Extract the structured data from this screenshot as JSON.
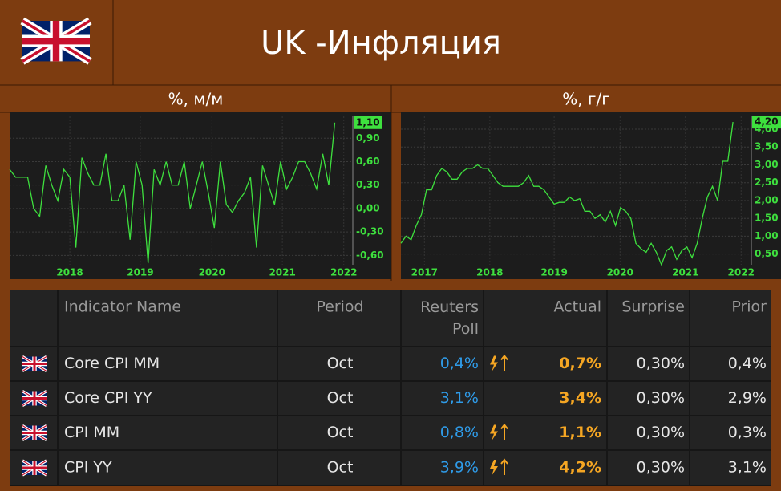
{
  "header": {
    "title": "UK -Инфляция"
  },
  "chart_data": [
    {
      "type": "line",
      "title": "%, м/м",
      "color": "#3ee03e",
      "grid": true,
      "values": [
        0.5,
        0.4,
        0.4,
        0.4,
        0.0,
        -0.1,
        0.55,
        0.3,
        0.1,
        0.5,
        0.4,
        -0.5,
        0.65,
        0.45,
        0.3,
        0.3,
        0.7,
        0.1,
        0.1,
        0.3,
        -0.4,
        0.6,
        0.3,
        -0.7,
        0.5,
        0.3,
        0.6,
        0.3,
        0.3,
        0.6,
        0.0,
        0.3,
        0.6,
        0.2,
        -0.25,
        0.6,
        0.05,
        -0.05,
        0.1,
        0.2,
        0.4,
        -0.5,
        0.55,
        0.3,
        0.05,
        0.6,
        0.25,
        0.4,
        0.6,
        0.6,
        0.45,
        0.25,
        0.7,
        0.3,
        1.1
      ],
      "xlim": [
        0,
        57
      ],
      "xticks": [
        {
          "value": 10,
          "label": "2018"
        },
        {
          "value": 21.7,
          "label": "2019"
        },
        {
          "value": 33.6,
          "label": "2020"
        },
        {
          "value": 45.3,
          "label": "2021"
        },
        {
          "value": 55.5,
          "label": "2022"
        }
      ],
      "ylim": [
        -0.72,
        1.18
      ],
      "yticks": [
        {
          "value": -0.6,
          "label": "-0,60"
        },
        {
          "value": -0.3,
          "label": "-0,30"
        },
        {
          "value": 0,
          "label": "0,00"
        },
        {
          "value": 0.3,
          "label": "0,30"
        },
        {
          "value": 0.6,
          "label": "0,60"
        },
        {
          "value": 0.9,
          "label": "0,90"
        }
      ],
      "current_value": {
        "value": 1.1,
        "label": "1,10"
      }
    },
    {
      "type": "line",
      "title": "%, г/г",
      "color": "#3ee03e",
      "grid": true,
      "values": [
        0.8,
        1.0,
        0.9,
        1.3,
        1.6,
        2.3,
        2.3,
        2.7,
        2.9,
        2.8,
        2.6,
        2.6,
        2.8,
        2.9,
        2.9,
        3.0,
        2.9,
        2.9,
        2.7,
        2.5,
        2.4,
        2.4,
        2.4,
        2.4,
        2.5,
        2.7,
        2.4,
        2.4,
        2.3,
        2.1,
        1.9,
        1.95,
        1.95,
        2.1,
        2.0,
        2.05,
        1.7,
        1.7,
        1.5,
        1.6,
        1.4,
        1.7,
        1.3,
        1.8,
        1.7,
        1.5,
        0.8,
        0.65,
        0.55,
        0.8,
        0.55,
        0.2,
        0.6,
        0.7,
        0.35,
        0.6,
        0.7,
        0.4,
        0.8,
        1.5,
        2.1,
        2.4,
        2.0,
        3.1,
        3.1,
        4.2
      ],
      "xlim": [
        0,
        68.6
      ],
      "xticks": [
        {
          "value": 4.6,
          "label": "2017"
        },
        {
          "value": 17.4,
          "label": "2018"
        },
        {
          "value": 30,
          "label": "2019"
        },
        {
          "value": 42.9,
          "label": "2020"
        },
        {
          "value": 55.7,
          "label": "2021"
        },
        {
          "value": 66.6,
          "label": "2022"
        }
      ],
      "ylim": [
        0.2,
        4.36
      ],
      "yticks": [
        {
          "value": 0.5,
          "label": "0,50"
        },
        {
          "value": 1,
          "label": "1,00"
        },
        {
          "value": 1.5,
          "label": "1,50"
        },
        {
          "value": 2,
          "label": "2,00"
        },
        {
          "value": 2.5,
          "label": "2,50"
        },
        {
          "value": 3,
          "label": "3,00"
        },
        {
          "value": 3.5,
          "label": "3,50"
        },
        {
          "value": 4,
          "label": "4,00"
        }
      ],
      "current_value": {
        "value": 4.2,
        "label": "4,20"
      }
    }
  ],
  "table": {
    "columns": {
      "name": "Indicator Name",
      "period": "Period",
      "poll": "Reuters Poll",
      "actual": "Actual",
      "surprise": "Surprise",
      "prior": "Prior"
    },
    "rows": [
      {
        "name": "Core CPI MM",
        "period": "Oct",
        "poll": "0,4%",
        "actual": "0,7%",
        "surprise": "0,30%",
        "prior": "0,4%",
        "beat": true
      },
      {
        "name": "Core CPI YY",
        "period": "Oct",
        "poll": "3,1%",
        "actual": "3,4%",
        "surprise": "0,30%",
        "prior": "2,9%",
        "beat": false
      },
      {
        "name": "CPI MM",
        "period": "Oct",
        "poll": "0,8%",
        "actual": "1,1%",
        "surprise": "0,30%",
        "prior": "0,3%",
        "beat": true
      },
      {
        "name": "CPI YY",
        "period": "Oct",
        "poll": "3,9%",
        "actual": "4,2%",
        "surprise": "0,30%",
        "prior": "3,1%",
        "beat": true
      }
    ]
  }
}
